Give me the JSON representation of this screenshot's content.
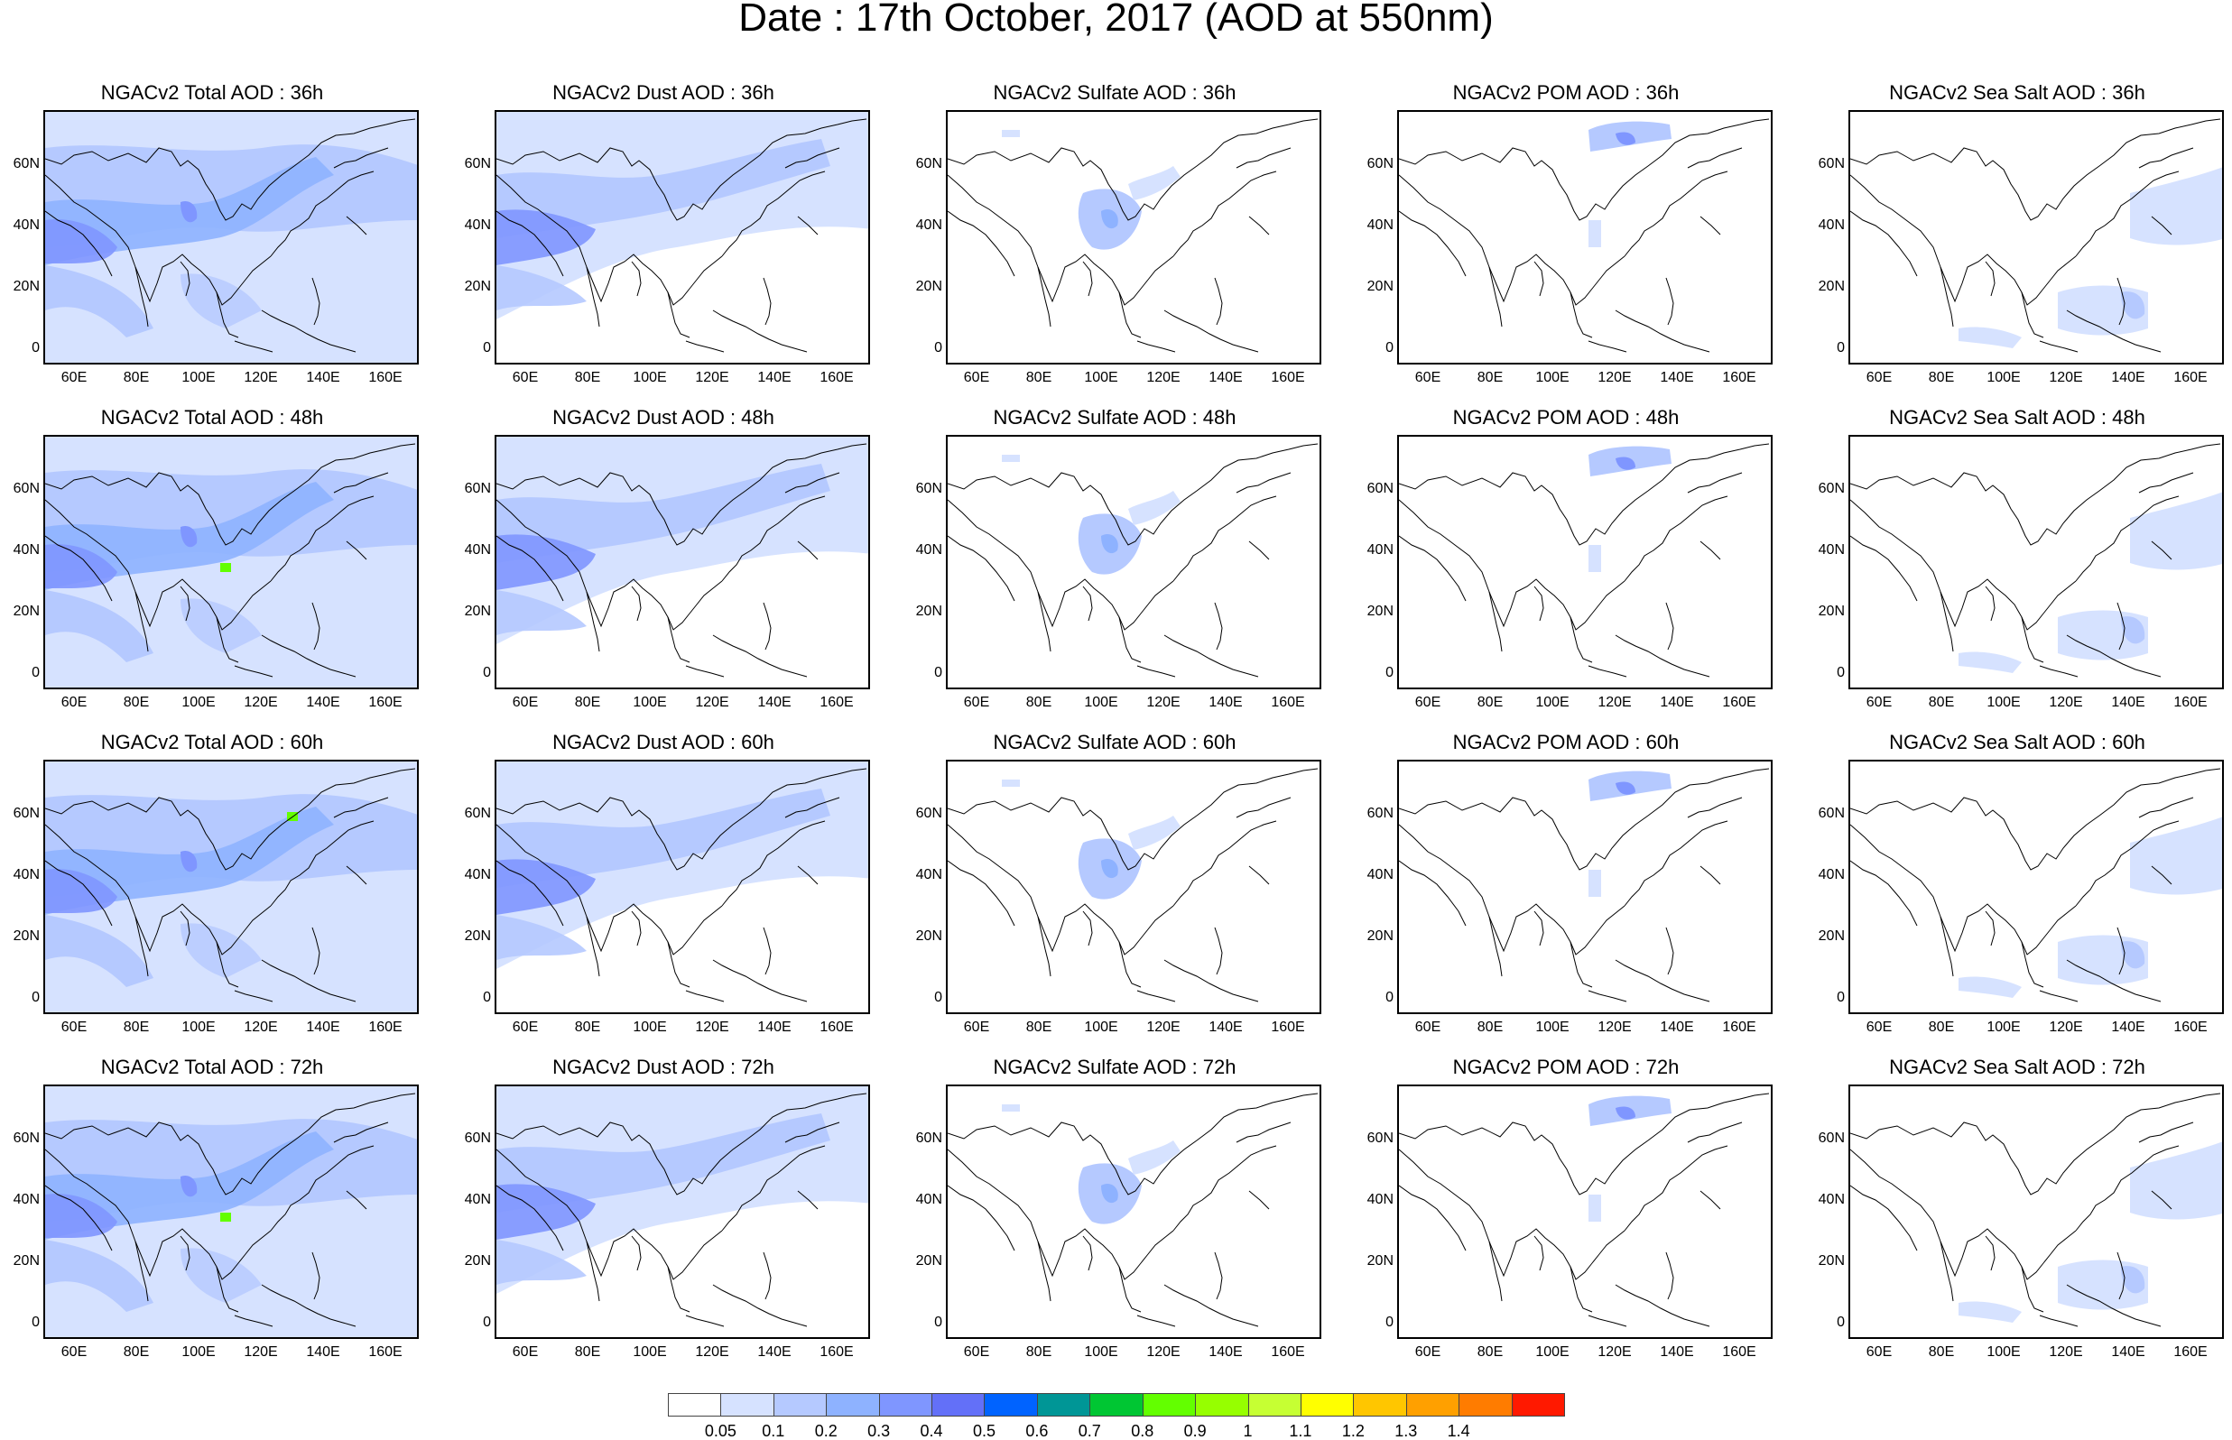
{
  "title": "Date : 17th October, 2017 (AOD at 550nm)",
  "rows": [
    "36h",
    "48h",
    "60h",
    "72h"
  ],
  "panels": [
    [
      "NGACv2 Total AOD : 36h",
      "NGACv2 Dust AOD : 36h",
      "NGACv2 Sulfate AOD : 36h",
      "NGACv2 POM AOD : 36h",
      "NGACv2 Sea Salt AOD : 36h"
    ],
    [
      "NGACv2 Total AOD : 48h",
      "NGACv2 Dust AOD : 48h",
      "NGACv2 Sulfate AOD : 48h",
      "NGACv2 POM AOD : 48h",
      "NGACv2 Sea Salt AOD : 48h"
    ],
    [
      "NGACv2 Total AOD : 60h",
      "NGACv2 Dust AOD : 60h",
      "NGACv2 Sulfate AOD : 60h",
      "NGACv2 POM AOD : 60h",
      "NGACv2 Sea Salt AOD : 60h"
    ],
    [
      "NGACv2 Total AOD : 72h",
      "NGACv2 Dust AOD : 72h",
      "NGACv2 Sulfate AOD : 72h",
      "NGACv2 POM AOD : 72h",
      "NGACv2 Sea Salt  AOD : 72h"
    ]
  ],
  "lat_ticks": [
    "60N",
    "40N",
    "20N",
    "0"
  ],
  "lon_ticks": [
    "60E",
    "80E",
    "100E",
    "120E",
    "140E",
    "160E"
  ],
  "colorbar": {
    "labels": [
      "0.05",
      "0.1",
      "0.2",
      "0.3",
      "0.4",
      "0.5",
      "0.6",
      "0.7",
      "0.8",
      "0.9",
      "1",
      "1.1",
      "1.2",
      "1.3",
      "1.4"
    ],
    "colors": [
      "#ffffff",
      "#d6e2ff",
      "#b5c9ff",
      "#8eb2ff",
      "#7f96ff",
      "#6370f8",
      "#0063ff",
      "#009696",
      "#00c633",
      "#63ff00",
      "#96ff00",
      "#c6ff33",
      "#ffff00",
      "#ffc600",
      "#ffa000",
      "#ff7c00",
      "#ff1900"
    ]
  },
  "legend_colors": {
    "low": "#d6e2ff",
    "medium": "#b5c9ff",
    "high": "#8eb2ff",
    "very_high": "#7f96ff",
    "peak": "#63ff00"
  }
}
